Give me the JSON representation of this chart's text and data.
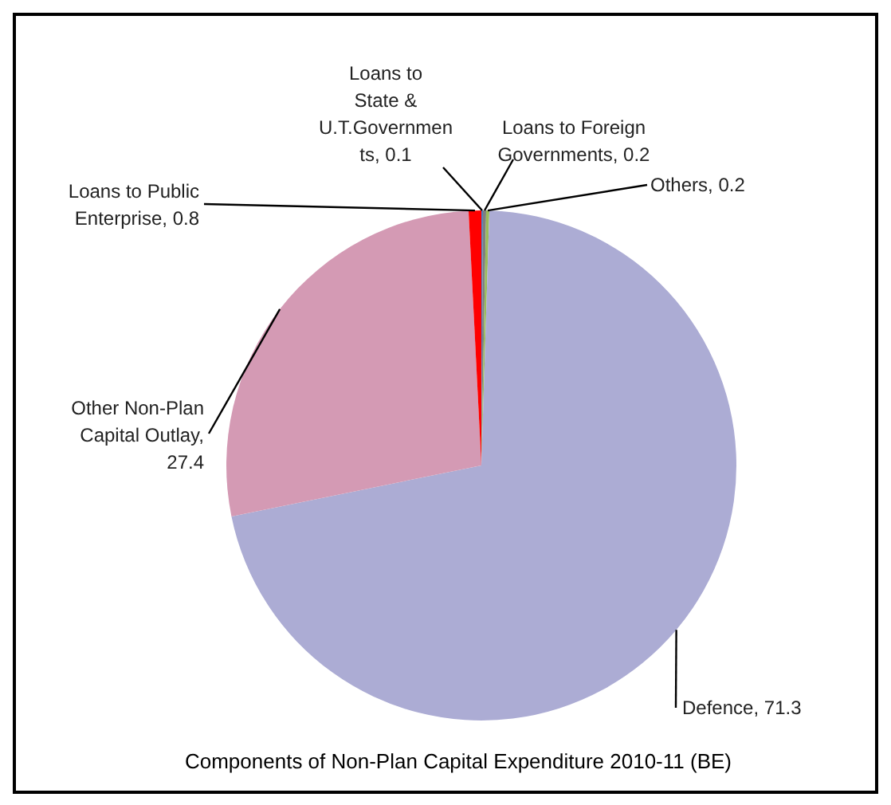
{
  "chart_data": {
    "type": "pie",
    "title": "Components of Non-Plan  Capital Expenditure 2010-11 (BE)",
    "categories": [
      "Loans to State & U.T.Governments",
      "Loans to Foreign Governments",
      "Others",
      "Defence",
      "Other Non-Plan Capital Outlay",
      "Loans to Public Enterprise"
    ],
    "values": [
      0.1,
      0.2,
      0.2,
      71.3,
      27.4,
      0.8
    ],
    "value_labels": [
      ", 0.1",
      ", 0.2",
      ", 0.2",
      ", 71.3",
      ", 27.4",
      ", 0.8"
    ],
    "colors": [
      "#4f81bd",
      "#7f7f7f",
      "#9bbb59",
      "#acacd4",
      "#d49ab4",
      "#ff0000"
    ],
    "legend": false
  }
}
